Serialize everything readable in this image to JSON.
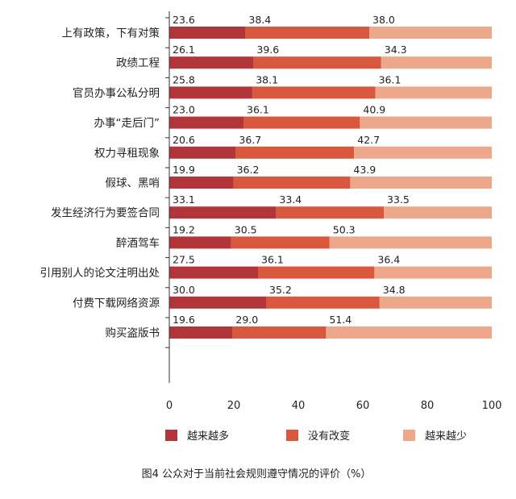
{
  "chart_data": {
    "type": "bar",
    "orientation": "horizontal",
    "stacked": true,
    "categories": [
      "上有政策，下有对策",
      "政绩工程",
      "官员办事公私分明",
      "办事“走后门”",
      "权力寻租现象",
      "假球、黑哨",
      "发生经济行为要签合同",
      "醉酒驾车",
      "引用别人的论文注明出处",
      "付费下载网络资源",
      "购买盗版书"
    ],
    "series": [
      {
        "name": "越来越多",
        "values": [
          23.6,
          26.1,
          25.8,
          23.0,
          20.6,
          19.9,
          33.1,
          19.2,
          27.5,
          30.0,
          19.6
        ]
      },
      {
        "name": "没有改变",
        "values": [
          38.4,
          39.6,
          38.1,
          36.1,
          36.7,
          36.2,
          33.4,
          30.5,
          36.1,
          35.2,
          29.0
        ]
      },
      {
        "name": "越来越少",
        "values": [
          38.0,
          34.3,
          36.1,
          40.9,
          42.7,
          43.9,
          33.5,
          50.3,
          36.4,
          34.8,
          51.4
        ]
      }
    ],
    "colors": [
      "#b2353a",
      "#d9583d",
      "#eda88b"
    ],
    "xlim": [
      0,
      100
    ],
    "xticks": [
      0,
      20,
      40,
      60,
      80,
      100
    ],
    "grid": false,
    "legend_position": "bottom",
    "caption": "图4   公众对于当前社会规则遵守情况的评价（%）",
    "text_color": "#222222",
    "axis_color": "#333333"
  }
}
